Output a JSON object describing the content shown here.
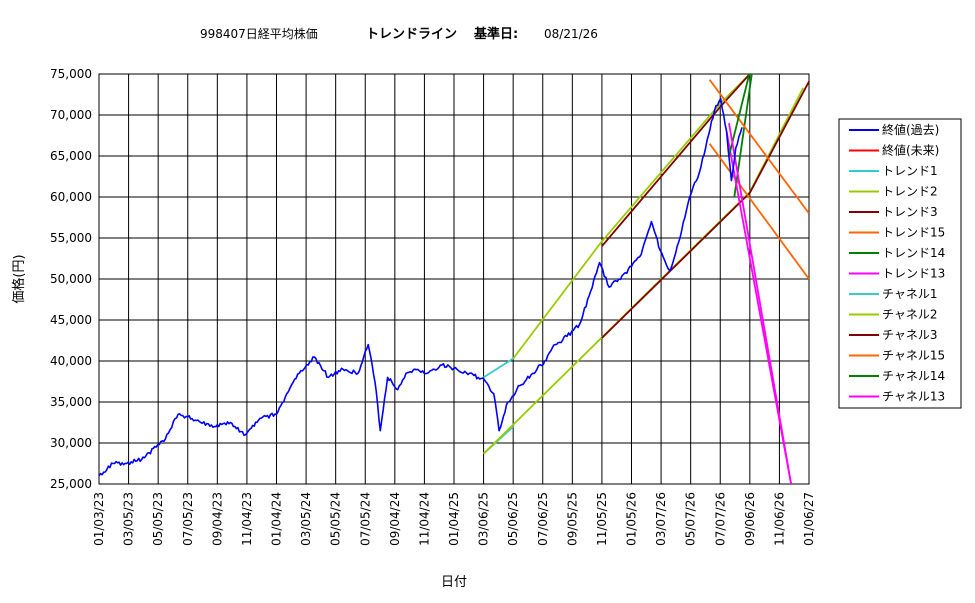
{
  "chart_data": {
    "type": "line",
    "title": {
      "code": "998407日経平均株価",
      "name": "トレンドライン",
      "base_label": "基準日:",
      "base_date": "08/21/26"
    },
    "xlabel": "日付",
    "ylabel": "価格(円)",
    "ylim": [
      25000,
      75000
    ],
    "yticks": [
      "25,000",
      "30,000",
      "35,000",
      "40,000",
      "45,000",
      "50,000",
      "55,000",
      "60,000",
      "65,000",
      "70,000",
      "75,000"
    ],
    "xlim": [
      "01/03/23",
      "01/06/27"
    ],
    "xticks": [
      "01/03/23",
      "03/05/23",
      "05/05/23",
      "07/05/23",
      "09/04/23",
      "11/04/23",
      "01/04/24",
      "03/05/24",
      "05/05/24",
      "07/05/24",
      "09/04/24",
      "11/04/24",
      "01/04/25",
      "03/06/25",
      "05/06/25",
      "07/06/25",
      "09/05/25",
      "11/05/25",
      "01/05/26",
      "03/07/26",
      "05/07/26",
      "07/07/26",
      "09/06/26",
      "11/06/26",
      "01/06/27"
    ],
    "grid": true,
    "legend_position": "right",
    "series": [
      {
        "name": "終値(過去)",
        "color": "#0000ff",
        "style": "price",
        "x": [
          "01/03/23",
          "02/01/23",
          "03/01/23",
          "04/01/23",
          "05/01/23",
          "05/20/23",
          "06/15/23",
          "07/05/23",
          "08/01/23",
          "09/01/23",
          "10/01/23",
          "11/01/23",
          "12/01/23",
          "01/04/24",
          "01/25/24",
          "02/20/24",
          "03/22/24",
          "04/20/24",
          "05/20/24",
          "06/20/24",
          "07/11/24",
          "07/25/24",
          "08/05/24",
          "08/20/24",
          "09/10/24",
          "09/27/24",
          "10/15/24",
          "11/10/24",
          "12/10/24",
          "01/10/25",
          "02/05/25",
          "03/10/25",
          "03/27/25",
          "04/07/25",
          "04/25/25",
          "05/20/25",
          "06/15/25",
          "07/10/25",
          "08/01/25",
          "08/25/25",
          "09/20/25",
          "10/10/25",
          "10/31/25",
          "11/20/25",
          "12/10/25",
          "01/05/26",
          "01/25/26",
          "02/15/26",
          "03/05/26",
          "03/25/26",
          "04/15/26",
          "05/05/26",
          "05/25/26",
          "06/10/26",
          "06/25/26",
          "07/08/26",
          "07/20/26",
          "07/30/26",
          "08/08/26",
          "08/21/26"
        ],
        "y": [
          26000,
          27500,
          27500,
          28000,
          29500,
          30500,
          33500,
          33200,
          32500,
          32000,
          32500,
          31000,
          33000,
          33500,
          36000,
          38500,
          40500,
          38000,
          39000,
          38500,
          42000,
          37500,
          31500,
          38000,
          36500,
          38500,
          39000,
          38500,
          39500,
          39000,
          38500,
          37500,
          36000,
          31500,
          35000,
          37000,
          38500,
          40000,
          42000,
          43000,
          44500,
          48000,
          52000,
          49000,
          50000,
          51500,
          53000,
          57000,
          53500,
          51000,
          55000,
          60000,
          63000,
          67000,
          70500,
          72000,
          68000,
          62000,
          66000,
          68500
        ]
      },
      {
        "name": "終値(未来)",
        "color": "#ff0000",
        "style": "price",
        "x": [],
        "y": []
      },
      {
        "name": "トレンド1",
        "color": "#33cccc",
        "style": "line",
        "x": [
          "03/06/25",
          "05/06/25"
        ],
        "y": [
          28700,
          32000
        ]
      },
      {
        "name": "トレンド2",
        "color": "#99cc00",
        "style": "line",
        "x": [
          "03/06/25",
          "09/06/26",
          "12/25/26"
        ],
        "y": [
          28700,
          60600,
          73300
        ]
      },
      {
        "name": "トレンド3",
        "color": "#800000",
        "style": "line",
        "x": [
          "11/05/25",
          "09/06/26",
          "01/06/27"
        ],
        "y": [
          42800,
          60500,
          74100
        ]
      },
      {
        "name": "トレンド15",
        "color": "#ff6600",
        "style": "line",
        "x": [
          "06/15/26",
          "01/06/27"
        ],
        "y": [
          66500,
          50000
        ]
      },
      {
        "name": "トレンド14",
        "color": "#008000",
        "style": "line",
        "x": [
          "08/05/26",
          "09/10/26"
        ],
        "y": [
          60000,
          75000
        ]
      },
      {
        "name": "トレンド13",
        "color": "#ff00ff",
        "style": "line",
        "x": [
          "07/20/26",
          "11/30/26"
        ],
        "y": [
          68000,
          25000
        ]
      },
      {
        "name": "チャネル1",
        "color": "#33cccc",
        "style": "line",
        "x": [
          "03/06/25",
          "05/06/25"
        ],
        "y": [
          38000,
          40300
        ]
      },
      {
        "name": "チャネル2",
        "color": "#99cc00",
        "style": "line",
        "x": [
          "05/06/25",
          "11/05/25",
          "07/07/26",
          "09/06/26"
        ],
        "y": [
          40300,
          54600,
          71400,
          75000
        ]
      },
      {
        "name": "チャネル3",
        "color": "#800000",
        "style": "line",
        "x": [
          "11/05/25",
          "07/07/26",
          "09/06/26"
        ],
        "y": [
          54000,
          71000,
          75000
        ]
      },
      {
        "name": "チャネル15",
        "color": "#ff6600",
        "style": "line",
        "x": [
          "06/15/26",
          "01/06/27"
        ],
        "y": [
          74300,
          58000
        ]
      },
      {
        "name": "チャネル14",
        "color": "#008000",
        "style": "line",
        "x": [
          "07/25/26",
          "09/05/26"
        ],
        "y": [
          65000,
          75000
        ]
      },
      {
        "name": "チャネル13",
        "color": "#ff00ff",
        "style": "line",
        "x": [
          "07/25/26",
          "11/30/26"
        ],
        "y": [
          69000,
          25000
        ]
      }
    ]
  }
}
